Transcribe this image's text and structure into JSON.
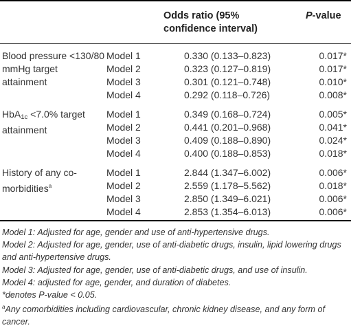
{
  "header": {
    "col_odds": "Odds ratio (95% confidence interval)",
    "col_p_italic": "P",
    "col_p_rest": "-value"
  },
  "groups": [
    {
      "label": "Blood pressure <130/80 mmHg target attainment",
      "rows": [
        {
          "model": "Model 1",
          "or": "0.330 (0.133–0.823)",
          "p": "0.017*"
        },
        {
          "model": "Model 2",
          "or": "0.323 (0.127–0.819)",
          "p": "0.017*"
        },
        {
          "model": "Model 3",
          "or": "0.301 (0.121–0.748)",
          "p": "0.010*"
        },
        {
          "model": "Model 4",
          "or": "0.292 (0.118–0.726)",
          "p": "0.008*"
        }
      ]
    },
    {
      "label_pre": "HbA",
      "label_sub": "1c",
      "label_post": " <7.0% target attainment",
      "rows": [
        {
          "model": "Model 1",
          "or": "0.349 (0.168–0.724)",
          "p": "0.005*"
        },
        {
          "model": "Model 2",
          "or": "0.441 (0.201–0.968)",
          "p": "0.041*"
        },
        {
          "model": "Model 3",
          "or": "0.409 (0.188–0.890)",
          "p": "0.024*"
        },
        {
          "model": "Model 4",
          "or": "0.400 (0.188–0.853)",
          "p": "0.018*"
        }
      ]
    },
    {
      "label_pre": "History of any co-morbidities",
      "label_sup": "a",
      "rows": [
        {
          "model": "Model 1",
          "or": "2.844 (1.347–6.002)",
          "p": "0.006*"
        },
        {
          "model": "Model 2",
          "or": "2.559 (1.178–5.562)",
          "p": "0.018*"
        },
        {
          "model": "Model 3",
          "or": "2.850 (1.349–6.021)",
          "p": "0.006*"
        },
        {
          "model": "Model 4",
          "or": "2.853 (1.354–6.013)",
          "p": "0.006*"
        }
      ]
    }
  ],
  "notes": {
    "model1": "Model 1: Adjusted for age, gender and use of anti-hypertensive drugs.",
    "model2": "Model 2: Adjusted for age, gender, use of anti-diabetic drugs, insulin, lipid lowering drugs and anti-hypertensive drugs.",
    "model3": "Model 3: Adjusted for age, gender, use of anti-diabetic drugs, and use of insulin.",
    "model4": "Model 4: adjusted for age, gender, and duration of diabetes.",
    "asterisk": "*denotes P-value < 0.05.",
    "footnote_mark": "a",
    "footnote": "Any comorbidities including cardiovascular, chronic kidney disease, and any form of cancer."
  }
}
